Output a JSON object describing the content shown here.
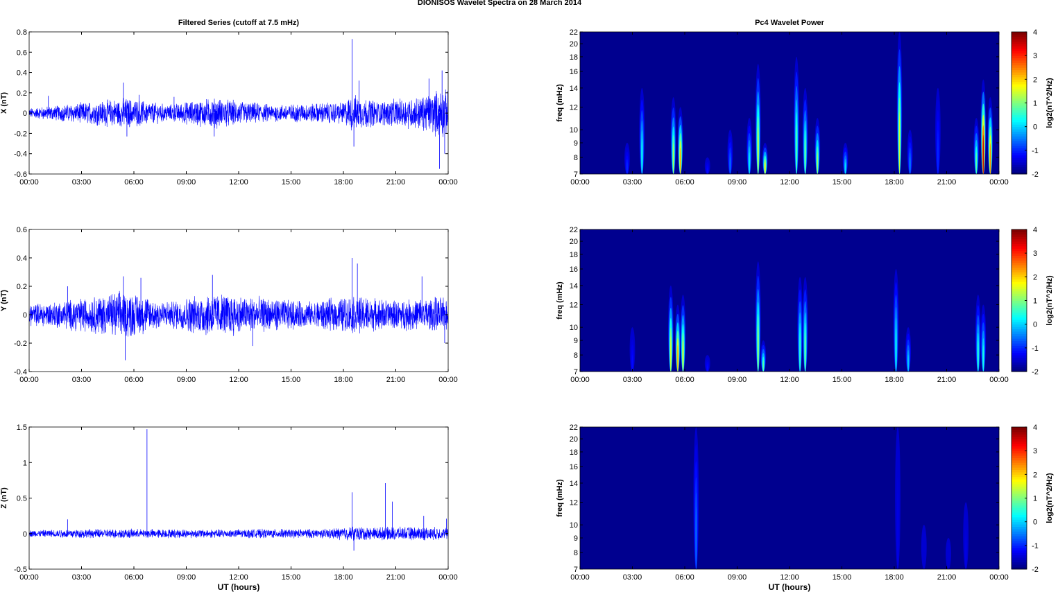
{
  "figure": {
    "title": "DIONISOS Wavelet Spectra on 28 March      2014"
  },
  "time_ticks": [
    "00:00",
    "03:00",
    "06:00",
    "09:00",
    "12:00",
    "15:00",
    "18:00",
    "21:00",
    "00:00"
  ],
  "xlabel": "UT (hours)",
  "colors": {
    "trace": "#0000ff",
    "spectrum_background": "#00008f"
  },
  "chart_data": [
    {
      "type": "line",
      "panel": "X",
      "title": "Filtered Series (cutoff at 7.5 mHz)",
      "xlabel": "",
      "ylabel": "X (nT)",
      "x_range_hours": [
        0,
        24
      ],
      "ylim": [
        -0.6,
        0.8
      ],
      "yticks": [
        -0.6,
        -0.4,
        -0.2,
        0,
        0.2,
        0.4,
        0.6,
        0.8
      ],
      "ytick_labels": [
        "-0.6",
        "-0.4",
        "-0.2",
        "0",
        "0.2",
        "0.4",
        "0.6",
        "0.8"
      ],
      "baseline_noise_amplitude": 0.07,
      "activity_envelope": [
        [
          0,
          0.6
        ],
        [
          2,
          1.0
        ],
        [
          5.5,
          1.8
        ],
        [
          8,
          1.0
        ],
        [
          10.5,
          1.8
        ],
        [
          14,
          1.0
        ],
        [
          18,
          1.3
        ],
        [
          18.5,
          2.2
        ],
        [
          20,
          1.4
        ],
        [
          22.5,
          2.0
        ],
        [
          23.7,
          3.0
        ],
        [
          24,
          2.5
        ]
      ],
      "spikes": [
        {
          "t": 1.1,
          "v": 0.17
        },
        {
          "t": 5.4,
          "v": 0.3
        },
        {
          "t": 5.6,
          "v": -0.23
        },
        {
          "t": 6.3,
          "v": 0.18
        },
        {
          "t": 8.3,
          "v": 0.16
        },
        {
          "t": 10.6,
          "v": -0.23
        },
        {
          "t": 18.5,
          "v": 0.73
        },
        {
          "t": 18.6,
          "v": -0.33
        },
        {
          "t": 18.9,
          "v": 0.32
        },
        {
          "t": 22.9,
          "v": 0.34
        },
        {
          "t": 23.5,
          "v": -0.55
        },
        {
          "t": 23.65,
          "v": 0.42
        },
        {
          "t": 23.8,
          "v": -0.4
        }
      ]
    },
    {
      "type": "line",
      "panel": "Y",
      "title": "",
      "xlabel": "",
      "ylabel": "Y (nT)",
      "x_range_hours": [
        0,
        24
      ],
      "ylim": [
        -0.4,
        0.6
      ],
      "yticks": [
        -0.4,
        -0.2,
        0,
        0.2,
        0.4,
        0.6
      ],
      "ytick_labels": [
        "-0.4",
        "-0.2",
        "0",
        "0.2",
        "0.4",
        "0.6"
      ],
      "baseline_noise_amplitude": 0.07,
      "activity_envelope": [
        [
          0,
          0.9
        ],
        [
          2,
          1.2
        ],
        [
          5.5,
          2.0
        ],
        [
          8,
          1.1
        ],
        [
          10.5,
          1.9
        ],
        [
          13,
          1.5
        ],
        [
          16,
          1.1
        ],
        [
          18.5,
          1.6
        ],
        [
          21,
          1.2
        ],
        [
          23.5,
          1.5
        ],
        [
          24,
          1.3
        ]
      ],
      "spikes": [
        {
          "t": 2.2,
          "v": 0.2
        },
        {
          "t": 5.4,
          "v": 0.27
        },
        {
          "t": 5.5,
          "v": -0.32
        },
        {
          "t": 6.4,
          "v": 0.26
        },
        {
          "t": 10.5,
          "v": 0.28
        },
        {
          "t": 12.8,
          "v": -0.22
        },
        {
          "t": 18.5,
          "v": 0.4
        },
        {
          "t": 18.8,
          "v": 0.36
        },
        {
          "t": 22.5,
          "v": 0.27
        },
        {
          "t": 23.8,
          "v": -0.2
        }
      ]
    },
    {
      "type": "line",
      "panel": "Z",
      "title": "",
      "xlabel": "UT (hours)",
      "ylabel": "Z (nT)",
      "x_range_hours": [
        0,
        24
      ],
      "ylim": [
        -0.5,
        1.5
      ],
      "yticks": [
        -0.5,
        0,
        0.5,
        1,
        1.5
      ],
      "ytick_labels": [
        "-0.5",
        "0",
        "0.5",
        "1",
        "1.5"
      ],
      "baseline_noise_amplitude": 0.05,
      "activity_envelope": [
        [
          0,
          0.8
        ],
        [
          2,
          1.0
        ],
        [
          5,
          1.1
        ],
        [
          10,
          1.0
        ],
        [
          17,
          1.1
        ],
        [
          18.5,
          1.7
        ],
        [
          20,
          1.5
        ],
        [
          22.5,
          1.6
        ],
        [
          24,
          1.4
        ]
      ],
      "spikes": [
        {
          "t": 2.2,
          "v": 0.2
        },
        {
          "t": 6.75,
          "v": 1.47
        },
        {
          "t": 18.5,
          "v": 0.58
        },
        {
          "t": 18.6,
          "v": -0.24
        },
        {
          "t": 20.4,
          "v": 0.71
        },
        {
          "t": 20.8,
          "v": 0.45
        },
        {
          "t": 22.6,
          "v": 0.25
        },
        {
          "t": 23.9,
          "v": 0.21
        }
      ]
    },
    {
      "type": "heatmap",
      "panel": "X",
      "title": "Pc4 Wavelet Power",
      "xlabel": "",
      "ylabel": "freq (mHz)",
      "x_range_hours": [
        0,
        24
      ],
      "ylim": [
        7,
        22
      ],
      "yticks": [
        7,
        8,
        9,
        10,
        12,
        14,
        16,
        18,
        20,
        22
      ],
      "y_scale": "log",
      "colorbar": {
        "label": "log2(nT^2/Hz)",
        "range": [
          -2,
          4
        ],
        "ticks": [
          "4",
          "3",
          "2",
          "1",
          "0",
          "-1",
          "-2"
        ]
      },
      "features": [
        {
          "t": 2.7,
          "fmax": 9,
          "peak": -1.0
        },
        {
          "t": 3.55,
          "fmax": 14,
          "peak": 0.3
        },
        {
          "t": 5.35,
          "fmax": 13,
          "peak": 1.3
        },
        {
          "t": 5.75,
          "fmax": 12,
          "peak": 2.3
        },
        {
          "t": 7.3,
          "fmax": 8,
          "peak": -1.2
        },
        {
          "t": 8.6,
          "fmax": 10,
          "peak": -0.6
        },
        {
          "t": 9.7,
          "fmax": 11,
          "peak": 0.2
        },
        {
          "t": 10.2,
          "fmax": 17,
          "peak": 1.5
        },
        {
          "t": 10.6,
          "fmax": 9,
          "peak": 1.8
        },
        {
          "t": 12.4,
          "fmax": 18,
          "peak": 0.8
        },
        {
          "t": 12.9,
          "fmax": 14,
          "peak": 0.9
        },
        {
          "t": 13.6,
          "fmax": 11,
          "peak": 1.2
        },
        {
          "t": 15.2,
          "fmax": 9,
          "peak": 0.1
        },
        {
          "t": 18.3,
          "fmax": 22,
          "peak": 1.5
        },
        {
          "t": 18.9,
          "fmax": 10,
          "peak": -0.5
        },
        {
          "t": 20.5,
          "fmax": 14,
          "peak": -1.0
        },
        {
          "t": 22.7,
          "fmax": 11,
          "peak": 0.8
        },
        {
          "t": 23.1,
          "fmax": 15,
          "peak": 3.6
        },
        {
          "t": 23.5,
          "fmax": 13,
          "peak": 2.5
        }
      ]
    },
    {
      "type": "heatmap",
      "panel": "Y",
      "title": "",
      "xlabel": "",
      "ylabel": "freq (mHz)",
      "x_range_hours": [
        0,
        24
      ],
      "ylim": [
        7,
        22
      ],
      "yticks": [
        7,
        8,
        9,
        10,
        12,
        14,
        16,
        18,
        20,
        22
      ],
      "y_scale": "log",
      "colorbar": {
        "label": "log2(nT^2/Hz)",
        "range": [
          -2,
          4
        ],
        "ticks": [
          "4",
          "3",
          "2",
          "1",
          "0",
          "-1",
          "-2"
        ]
      },
      "features": [
        {
          "t": 3.0,
          "fmax": 10,
          "peak": -1.2
        },
        {
          "t": 5.2,
          "fmax": 14,
          "peak": 1.6
        },
        {
          "t": 5.6,
          "fmax": 12,
          "peak": 2.3
        },
        {
          "t": 5.9,
          "fmax": 13,
          "peak": 1.6
        },
        {
          "t": 7.3,
          "fmax": 8,
          "peak": -1.2
        },
        {
          "t": 10.2,
          "fmax": 17,
          "peak": 1.2
        },
        {
          "t": 10.5,
          "fmax": 9,
          "peak": 0.8
        },
        {
          "t": 12.6,
          "fmax": 15,
          "peak": 0.6
        },
        {
          "t": 12.9,
          "fmax": 15,
          "peak": 0.9
        },
        {
          "t": 18.1,
          "fmax": 16,
          "peak": 0.3
        },
        {
          "t": 18.8,
          "fmax": 10,
          "peak": 0.0
        },
        {
          "t": 22.8,
          "fmax": 13,
          "peak": 0.5
        },
        {
          "t": 23.1,
          "fmax": 12,
          "peak": 0.4
        }
      ]
    },
    {
      "type": "heatmap",
      "panel": "Z",
      "title": "",
      "xlabel": "UT (hours)",
      "ylabel": "freq (mHz)",
      "x_range_hours": [
        0,
        24
      ],
      "ylim": [
        7,
        22
      ],
      "yticks": [
        7,
        8,
        9,
        10,
        12,
        14,
        16,
        18,
        20,
        22
      ],
      "y_scale": "log",
      "colorbar": {
        "label": "log2(nT^2/Hz)",
        "range": [
          -2,
          4
        ],
        "ticks": [
          "4",
          "3",
          "2",
          "1",
          "0",
          "-1",
          "-2"
        ]
      },
      "features": [
        {
          "t": 6.65,
          "fmax": 22,
          "peak": -0.6
        },
        {
          "t": 18.2,
          "fmax": 22,
          "peak": -1.4
        },
        {
          "t": 19.7,
          "fmax": 10,
          "peak": -1.6
        },
        {
          "t": 21.1,
          "fmax": 9,
          "peak": -1.6
        },
        {
          "t": 22.1,
          "fmax": 12,
          "peak": -1.4
        }
      ]
    }
  ]
}
